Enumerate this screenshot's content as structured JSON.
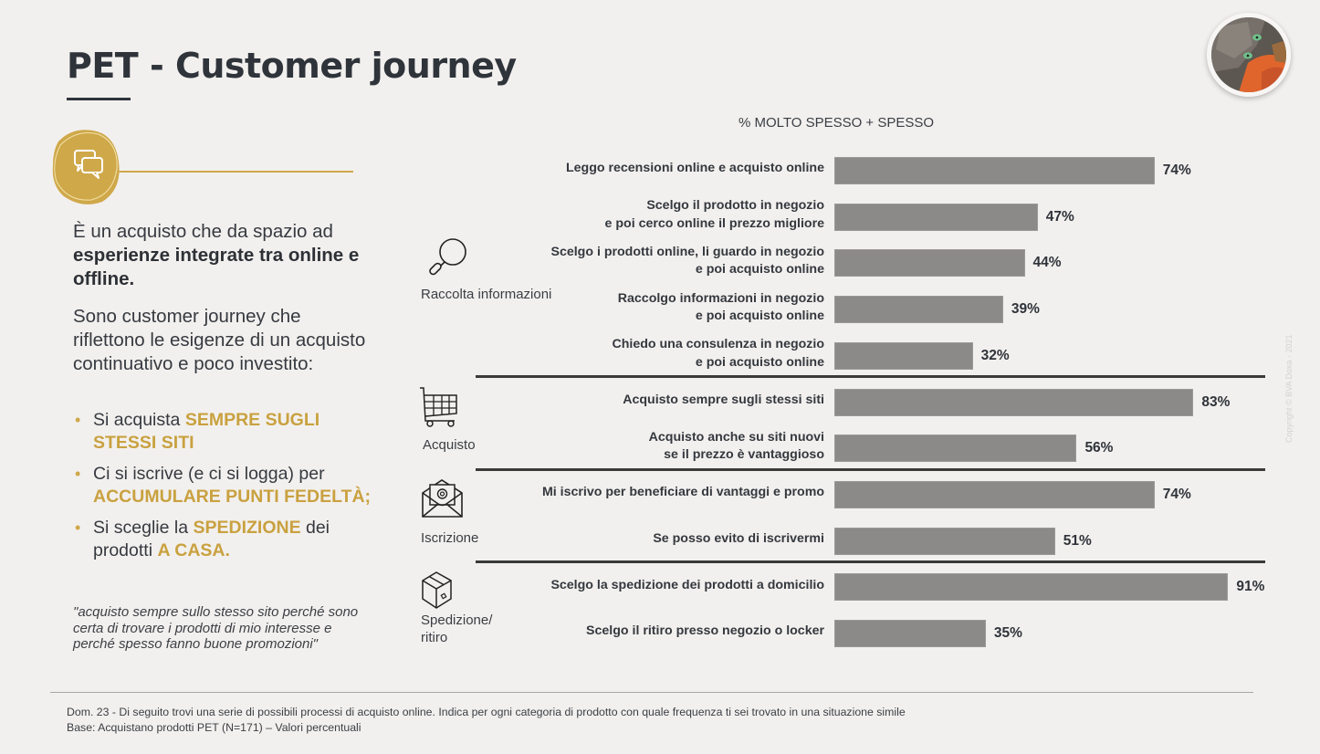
{
  "header": {
    "title": "PET - Customer journey",
    "copyright": "Copyright © BVA Doxa - 2021"
  },
  "left_panel": {
    "icon": "chat-bubbles-icon",
    "intro_plain": "È un acquisto che da spazio ad ",
    "intro_bold": "esperienze integrate tra online e offline.",
    "paragraph": "Sono customer journey che riflettono le esigenze di un acquisto continuativo e poco investito:",
    "bullets": [
      {
        "plain": "Si acquista ",
        "highlight": "SEMPRE SUGLI STESSI SITI",
        "after_plain": "",
        "after_highlight": ""
      },
      {
        "plain": "Ci si iscrive (e ci si logga) per ",
        "highlight": "ACCUMULARE PUNTI FEDELTÀ;",
        "after_plain": "",
        "after_highlight": ""
      },
      {
        "plain": "Si sceglie la ",
        "highlight": "SPEDIZIONE",
        "after_plain": " dei prodotti ",
        "after_highlight": "A CASA."
      }
    ],
    "quote": "\"acquisto sempre sullo stesso sito perché sono certa di trovare i prodotti di mio interesse e perché spesso fanno buone promozioni\""
  },
  "colors": {
    "accent_gold": "#cfa84a",
    "bar_gray": "#8b8a88",
    "text_dark": "#2f343b",
    "background": "#f2f0ee"
  },
  "chart_data": {
    "type": "bar",
    "orientation": "horizontal",
    "title": "% MOLTO SPESSO + SPESSO",
    "xlabel": "",
    "ylabel": "",
    "xlim": [
      0,
      100
    ],
    "grid": false,
    "unit": "%",
    "groups": [
      {
        "name": "Raccolta informazioni",
        "icon": "magnifier-icon",
        "items": [
          {
            "label": "Leggo recensioni online e acquisto online",
            "value": 74,
            "value_label": "74%"
          },
          {
            "label": "Scelgo il prodotto in negozio\ne poi cerco online il prezzo migliore",
            "value": 47,
            "value_label": "47%"
          },
          {
            "label": "Scelgo i prodotti online, li guardo in negozio\ne poi acquisto online",
            "value": 44,
            "value_label": "44%"
          },
          {
            "label": "Raccolgo informazioni in negozio\ne poi acquisto online",
            "value": 39,
            "value_label": "39%"
          },
          {
            "label": "Chiedo una consulenza in negozio\ne poi acquisto online",
            "value": 32,
            "value_label": "32%"
          }
        ]
      },
      {
        "name": "Acquisto",
        "icon": "shopping-cart-icon",
        "items": [
          {
            "label": "Acquisto sempre sugli stessi siti",
            "value": 83,
            "value_label": "83%"
          },
          {
            "label": "Acquisto anche su siti nuovi\nse il prezzo è vantaggioso",
            "value": 56,
            "value_label": "56%"
          }
        ]
      },
      {
        "name": "Iscrizione",
        "icon": "envelope-at-icon",
        "items": [
          {
            "label": "Mi iscrivo per beneficiare di vantaggi e promo",
            "value": 74,
            "value_label": "74%"
          },
          {
            "label": "Se posso evito di iscrivermi",
            "value": 51,
            "value_label": "51%"
          }
        ]
      },
      {
        "name": "Spedizione/\nritiro",
        "icon": "package-box-icon",
        "items": [
          {
            "label": "Scelgo la spedizione dei prodotti a domicilio",
            "value": 91,
            "value_label": "91%"
          },
          {
            "label": "Scelgo il ritiro presso negozio o locker",
            "value": 35,
            "value_label": "35%"
          }
        ]
      }
    ]
  },
  "footer": {
    "question": "Dom. 23 - Di seguito trovi una serie di possibili processi di acquisto online. Indica per ogni categoria di prodotto con quale frequenza ti sei trovato in una situazione simile",
    "base": "Base: Acquistano prodotti PET (N=171) – Valori percentuali"
  }
}
